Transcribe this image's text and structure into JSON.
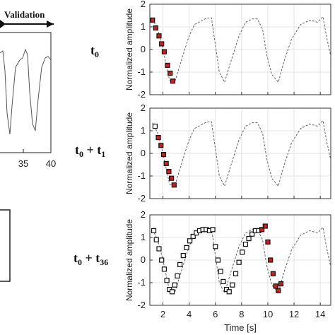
{
  "left_panel": {
    "validation_label": "Validation",
    "x_ticks": [
      "35",
      "40"
    ]
  },
  "row_labels": [
    {
      "main": "t",
      "sub": "0",
      "extra_main": "",
      "extra_sub": ""
    },
    {
      "main": "t",
      "sub": "0",
      "extra_main": " + t",
      "extra_sub": "1"
    },
    {
      "main": "t",
      "sub": "0",
      "extra_main": " + t",
      "extra_sub": "36"
    }
  ],
  "chart_data": [
    {
      "type": "line",
      "ylabel": "Normalized amplitude",
      "xlabel": "",
      "xlim": [
        1,
        14.8
      ],
      "ylim": [
        -2,
        2
      ],
      "yticks": [
        -2,
        -1,
        0,
        1,
        2
      ],
      "xticks": [
        2,
        4,
        6,
        8,
        10,
        12,
        14
      ],
      "show_xticklabels": false,
      "grid": true,
      "signal_x": [
        1.2,
        1.6,
        2.0,
        2.5,
        2.9,
        3.5,
        4.0,
        4.4,
        4.9,
        5.3,
        5.7,
        6.0,
        6.3,
        6.7,
        7.2,
        7.8,
        8.3,
        8.8,
        9.2,
        9.6,
        9.9,
        10.3,
        10.8,
        11.2,
        11.8,
        12.5,
        13.2,
        13.8,
        14.2,
        14.5,
        14.8
      ],
      "signal_y": [
        1.35,
        0.9,
        0.0,
        -1.35,
        -1.45,
        -0.3,
        0.6,
        1.1,
        1.25,
        1.38,
        1.4,
        0.2,
        -1.0,
        -1.45,
        -0.5,
        0.6,
        1.2,
        1.35,
        1.35,
        0.9,
        -0.2,
        -1.1,
        -1.45,
        -0.6,
        0.45,
        1.1,
        1.3,
        1.2,
        1.45,
        0.5,
        -0.3
      ],
      "samples_red": [
        [
          1.2,
          1.3
        ],
        [
          1.45,
          0.95
        ],
        [
          1.7,
          0.6
        ],
        [
          1.9,
          0.25
        ],
        [
          2.1,
          -0.1
        ],
        [
          2.35,
          -0.7
        ],
        [
          2.55,
          -1.05
        ],
        [
          2.75,
          -1.4
        ]
      ],
      "samples_white": []
    },
    {
      "type": "line",
      "ylabel": "Normalized amplitude",
      "xlabel": "",
      "xlim": [
        1,
        14.8
      ],
      "ylim": [
        -2,
        2
      ],
      "yticks": [
        -2,
        -1,
        0,
        1,
        2
      ],
      "xticks": [
        2,
        4,
        6,
        8,
        10,
        12,
        14
      ],
      "show_xticklabels": false,
      "grid": true,
      "signal_x": [
        1.2,
        1.6,
        2.0,
        2.5,
        2.9,
        3.5,
        4.0,
        4.4,
        4.9,
        5.3,
        5.7,
        6.0,
        6.3,
        6.7,
        7.2,
        7.8,
        8.3,
        8.8,
        9.2,
        9.6,
        9.9,
        10.3,
        10.8,
        11.2,
        11.8,
        12.5,
        13.2,
        13.8,
        14.2,
        14.5,
        14.8
      ],
      "signal_y": [
        1.35,
        0.9,
        0.0,
        -1.35,
        -1.45,
        -0.3,
        0.6,
        1.1,
        1.25,
        1.38,
        1.4,
        0.2,
        -1.0,
        -1.45,
        -0.5,
        0.6,
        1.2,
        1.35,
        1.35,
        0.9,
        -0.2,
        -1.1,
        -1.45,
        -0.6,
        0.45,
        1.1,
        1.3,
        1.2,
        1.45,
        0.5,
        -0.3
      ],
      "samples_red": [
        [
          1.65,
          0.7
        ],
        [
          1.85,
          0.35
        ],
        [
          2.05,
          -0.05
        ],
        [
          2.25,
          -0.45
        ],
        [
          2.45,
          -0.8
        ],
        [
          2.65,
          -1.1
        ],
        [
          2.85,
          -1.4
        ]
      ],
      "samples_white": [
        [
          1.4,
          1.2
        ]
      ]
    },
    {
      "type": "line",
      "ylabel": "Normalized amplitude",
      "xlabel": "Time [s]",
      "xlim": [
        1,
        14.8
      ],
      "ylim": [
        -2,
        2
      ],
      "yticks": [
        -2,
        -1,
        0,
        1,
        2
      ],
      "xticks": [
        2,
        4,
        6,
        8,
        10,
        12,
        14
      ],
      "show_xticklabels": true,
      "grid": true,
      "signal_x": [
        1.2,
        1.6,
        2.0,
        2.5,
        2.9,
        3.5,
        4.0,
        4.4,
        4.9,
        5.3,
        5.7,
        6.0,
        6.3,
        6.7,
        7.2,
        7.8,
        8.3,
        8.8,
        9.2,
        9.6,
        9.9,
        10.3,
        10.8,
        11.2,
        11.8,
        12.5,
        13.2,
        13.8,
        14.2,
        14.5,
        14.8
      ],
      "signal_y": [
        1.35,
        0.9,
        0.0,
        -1.35,
        -1.45,
        -0.3,
        0.6,
        1.1,
        1.25,
        1.38,
        1.4,
        0.2,
        -1.0,
        -1.45,
        -0.5,
        0.6,
        1.2,
        1.35,
        1.35,
        0.9,
        -0.2,
        -1.1,
        -1.45,
        -0.6,
        0.45,
        1.1,
        1.3,
        1.2,
        1.45,
        0.5,
        -0.3
      ],
      "samples_white": [
        [
          1.3,
          1.3
        ],
        [
          1.5,
          0.9
        ],
        [
          1.7,
          0.5
        ],
        [
          1.9,
          0.0
        ],
        [
          2.1,
          -0.4
        ],
        [
          2.3,
          -0.9
        ],
        [
          2.5,
          -1.3
        ],
        [
          2.7,
          -1.4
        ],
        [
          2.9,
          -1.1
        ],
        [
          3.1,
          -0.7
        ],
        [
          3.3,
          -0.2
        ],
        [
          3.55,
          0.2
        ],
        [
          3.8,
          0.55
        ],
        [
          4.05,
          0.85
        ],
        [
          4.3,
          1.05
        ],
        [
          4.55,
          1.2
        ],
        [
          4.8,
          1.3
        ],
        [
          5.05,
          1.35
        ],
        [
          5.3,
          1.35
        ],
        [
          5.55,
          1.3
        ],
        [
          5.8,
          1.35
        ],
        [
          6.0,
          0.6
        ],
        [
          6.2,
          0.0
        ],
        [
          6.4,
          -0.5
        ],
        [
          6.6,
          -0.95
        ],
        [
          6.85,
          -1.3
        ],
        [
          7.05,
          -1.4
        ],
        [
          7.3,
          -1.1
        ],
        [
          7.55,
          -0.6
        ],
        [
          7.8,
          -0.1
        ],
        [
          8.05,
          0.35
        ],
        [
          8.3,
          0.7
        ],
        [
          8.55,
          0.95
        ],
        [
          8.8,
          1.15
        ],
        [
          9.05,
          1.3
        ],
        [
          9.3,
          1.3
        ]
      ],
      "samples_red": [
        [
          9.55,
          1.35
        ],
        [
          9.8,
          1.5
        ],
        [
          10.0,
          0.8
        ],
        [
          10.2,
          0.0
        ],
        [
          10.4,
          -0.6
        ],
        [
          10.6,
          -1.15
        ],
        [
          10.8,
          -1.35
        ],
        [
          11.0,
          -1.05
        ]
      ]
    }
  ]
}
